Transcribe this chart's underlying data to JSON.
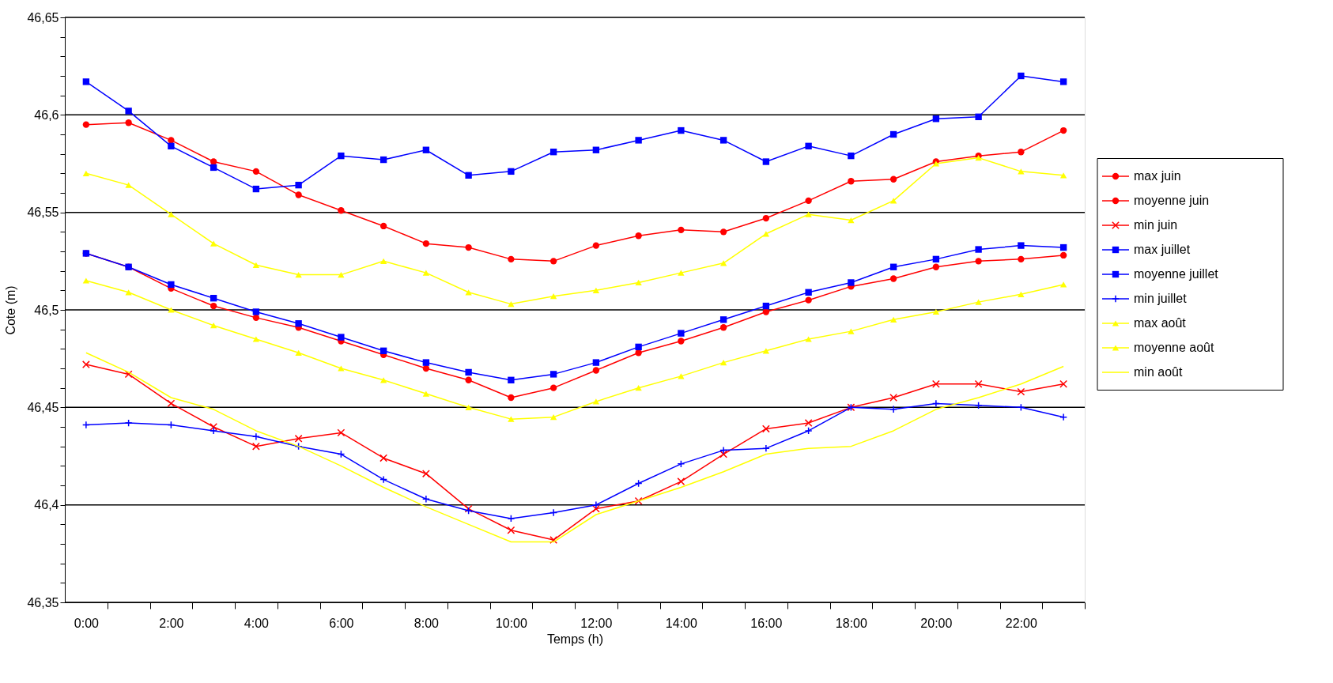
{
  "chart_data": {
    "type": "line",
    "xlabel": "Temps (h)",
    "ylabel": "Cote (m)",
    "categories": [
      "0:00",
      null,
      "2:00",
      null,
      "4:00",
      null,
      "6:00",
      null,
      "8:00",
      null,
      "10:00",
      null,
      "12:00",
      null,
      "14:00",
      null,
      "16:00",
      null,
      "18:00",
      null,
      "20:00",
      null,
      "22:00",
      null
    ],
    "ylim": [
      46.35,
      46.65
    ],
    "yticks": [
      {
        "value": 46.35,
        "label": "46,35"
      },
      {
        "value": 46.36,
        "label": null
      },
      {
        "value": 46.37,
        "label": null
      },
      {
        "value": 46.38,
        "label": null
      },
      {
        "value": 46.39,
        "label": null
      },
      {
        "value": 46.4,
        "label": "46,4"
      },
      {
        "value": 46.41,
        "label": null
      },
      {
        "value": 46.42,
        "label": null
      },
      {
        "value": 46.43,
        "label": null
      },
      {
        "value": 46.44,
        "label": null
      },
      {
        "value": 46.45,
        "label": "46,45"
      },
      {
        "value": 46.46,
        "label": null
      },
      {
        "value": 46.47,
        "label": null
      },
      {
        "value": 46.48,
        "label": null
      },
      {
        "value": 46.49,
        "label": null
      },
      {
        "value": 46.5,
        "label": "46,5"
      },
      {
        "value": 46.51,
        "label": null
      },
      {
        "value": 46.52,
        "label": null
      },
      {
        "value": 46.53,
        "label": null
      },
      {
        "value": 46.54,
        "label": null
      },
      {
        "value": 46.55,
        "label": "46,55"
      },
      {
        "value": 46.56,
        "label": null
      },
      {
        "value": 46.57,
        "label": null
      },
      {
        "value": 46.58,
        "label": null
      },
      {
        "value": 46.59,
        "label": null
      },
      {
        "value": 46.6,
        "label": "46,6"
      },
      {
        "value": 46.61,
        "label": null
      },
      {
        "value": 46.62,
        "label": null
      },
      {
        "value": 46.63,
        "label": null
      },
      {
        "value": 46.64,
        "label": null
      },
      {
        "value": 46.65,
        "label": "46,65"
      }
    ],
    "grid": "y",
    "legend": "right",
    "line_style": "solid",
    "series": [
      {
        "name": "max juin",
        "color": "#ff0000",
        "marker": "circle",
        "values": [
          46.595,
          46.596,
          46.587,
          46.576,
          46.571,
          46.559,
          46.551,
          46.543,
          46.534,
          46.532,
          46.526,
          46.525,
          46.533,
          46.538,
          46.541,
          46.54,
          46.547,
          46.556,
          46.566,
          46.567,
          46.576,
          46.579,
          46.581,
          46.592
        ]
      },
      {
        "name": "moyenne juin",
        "color": "#ff0000",
        "marker": "circle",
        "values": [
          46.529,
          46.522,
          46.511,
          46.502,
          46.496,
          46.491,
          46.484,
          46.477,
          46.47,
          46.464,
          46.455,
          46.46,
          46.469,
          46.478,
          46.484,
          46.491,
          46.499,
          46.505,
          46.512,
          46.516,
          46.522,
          46.525,
          46.526,
          46.528
        ]
      },
      {
        "name": "min juin",
        "color": "#ff0000",
        "marker": "x",
        "values": [
          46.472,
          46.467,
          46.452,
          46.44,
          46.43,
          46.434,
          46.437,
          46.424,
          46.416,
          46.398,
          46.387,
          46.382,
          46.398,
          46.402,
          46.412,
          46.426,
          46.439,
          46.442,
          46.45,
          46.455,
          46.462,
          46.462,
          46.458,
          46.462
        ]
      },
      {
        "name": "max  juillet",
        "color": "#0000ff",
        "marker": "square",
        "values": [
          46.617,
          46.602,
          46.584,
          46.573,
          46.562,
          46.564,
          46.579,
          46.577,
          46.582,
          46.569,
          46.571,
          46.581,
          46.582,
          46.587,
          46.592,
          46.587,
          46.576,
          46.584,
          46.579,
          46.59,
          46.598,
          46.599,
          46.62,
          46.617
        ]
      },
      {
        "name": "moyenne juillet",
        "color": "#0000ff",
        "marker": "square",
        "values": [
          46.529,
          46.522,
          46.513,
          46.506,
          46.499,
          46.493,
          46.486,
          46.479,
          46.473,
          46.468,
          46.464,
          46.467,
          46.473,
          46.481,
          46.488,
          46.495,
          46.502,
          46.509,
          46.514,
          46.522,
          46.526,
          46.531,
          46.533,
          46.532
        ]
      },
      {
        "name": "min  juillet",
        "color": "#0000ff",
        "marker": "cross",
        "values": [
          46.441,
          46.442,
          46.441,
          46.438,
          46.435,
          46.43,
          46.426,
          46.413,
          46.403,
          46.397,
          46.393,
          46.396,
          46.4,
          46.411,
          46.421,
          46.428,
          46.429,
          46.438,
          46.45,
          46.449,
          46.452,
          46.451,
          46.45,
          46.445
        ]
      },
      {
        "name": "max août",
        "color": "#ffff00",
        "marker": "triangle",
        "values": [
          46.57,
          46.564,
          46.549,
          46.534,
          46.523,
          46.518,
          46.518,
          46.525,
          46.519,
          46.509,
          46.503,
          46.507,
          46.51,
          46.514,
          46.519,
          46.524,
          46.539,
          46.549,
          46.546,
          46.556,
          46.575,
          46.578,
          46.571,
          46.569
        ]
      },
      {
        "name": "moyenne août",
        "color": "#ffff00",
        "marker": "triangle",
        "values": [
          46.515,
          46.509,
          46.5,
          46.492,
          46.485,
          46.478,
          46.47,
          46.464,
          46.457,
          46.45,
          46.444,
          46.445,
          46.453,
          46.46,
          46.466,
          46.473,
          46.479,
          46.485,
          46.489,
          46.495,
          46.499,
          46.504,
          46.508,
          46.513
        ]
      },
      {
        "name": "min août",
        "color": "#ffff00",
        "marker": "none",
        "values": [
          46.478,
          46.468,
          46.455,
          46.449,
          46.438,
          46.43,
          46.42,
          46.409,
          46.399,
          46.39,
          46.381,
          46.381,
          46.395,
          46.402,
          46.409,
          46.417,
          46.426,
          46.429,
          46.43,
          46.438,
          46.449,
          46.455,
          46.462,
          46.471
        ]
      }
    ]
  }
}
